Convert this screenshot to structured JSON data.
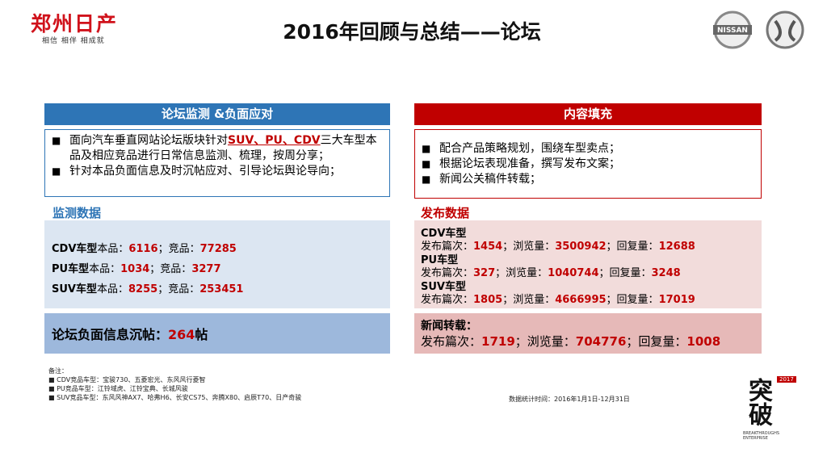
{
  "header": {
    "brand": "郑州日产",
    "slogan": "相信 相伴 相成就",
    "title": "2016年回顾与总结——论坛",
    "partner_logo": "NISSAN"
  },
  "left": {
    "heading": "论坛监测 &负面应对",
    "bullets": [
      {
        "before": "面向汽车垂直网站论坛版块针对",
        "highlight": "SUV、PU、CDV",
        "after": "三大车型本品及相应竞品进行日常信息监测、梳理，按周分享；"
      },
      {
        "before": "针对本品负面信息及时沉帖应对、引导论坛舆论导向；"
      }
    ],
    "data_title": "监测数据",
    "rows": [
      {
        "model": "CDV车型",
        "own_label": "本品：",
        "own": 6116,
        "comp_label": "；竞品：",
        "comp": 77285
      },
      {
        "model": "PU车型",
        "own_label": "本品：",
        "own": 1034,
        "comp_label": "；竞品：",
        "comp": 3277
      },
      {
        "model": "SUV车型",
        "own_label": "本品：",
        "own": 8255,
        "comp_label": "；竞品：",
        "comp": 253451
      }
    ],
    "negative": {
      "label": "论坛负面信息沉帖：",
      "value": 264,
      "unit": "帖"
    }
  },
  "right": {
    "heading": "内容填充",
    "bullets": [
      "配合产品策略规划，围绕车型卖点；",
      "根据论坛表现准备，撰写发布文案；",
      "新闻公关稿件转载；"
    ],
    "data_title": "发布数据",
    "rows": [
      {
        "model": "CDV车型",
        "posts_label": "发布篇次：",
        "posts": 1454,
        "views_label": "；浏览量：",
        "views": 3500942,
        "replies_label": "；回复量：",
        "replies": 12688
      },
      {
        "model": "PU车型",
        "posts_label": "发布篇次：",
        "posts": 327,
        "views_label": "；浏览量：",
        "views": 1040744,
        "replies_label": "；回复量：",
        "replies": 3248
      },
      {
        "model": "SUV车型",
        "posts_label": "发布篇次：",
        "posts": 1805,
        "views_label": "；浏览量：",
        "views": 4666995,
        "replies_label": "；回复量：",
        "replies": 17019
      }
    ],
    "news": {
      "title": "新闻转载：",
      "posts_label": "发布篇次：",
      "posts": 1719,
      "views_label": "；浏览量：",
      "views": 704776,
      "replies_label": "；回复量：",
      "replies": 1008
    }
  },
  "notes": {
    "title": "备注：",
    "items": [
      "CDV竞品车型：宝骏730、五菱宏光、东风风行菱智",
      "PU竞品车型：江铃域虎、江铃宝典、长城风骏",
      "SUV竞品车型：东风风神AX7、哈弗H6、长安CS75、奔腾X80、启辰T70、日产奇骏"
    ],
    "period": "数据统计时间：2016年1月1日-12月31日"
  },
  "badge": {
    "year": "2017",
    "text": "突破",
    "english": "BREAKTHROUGHS ENTERPRISE"
  }
}
